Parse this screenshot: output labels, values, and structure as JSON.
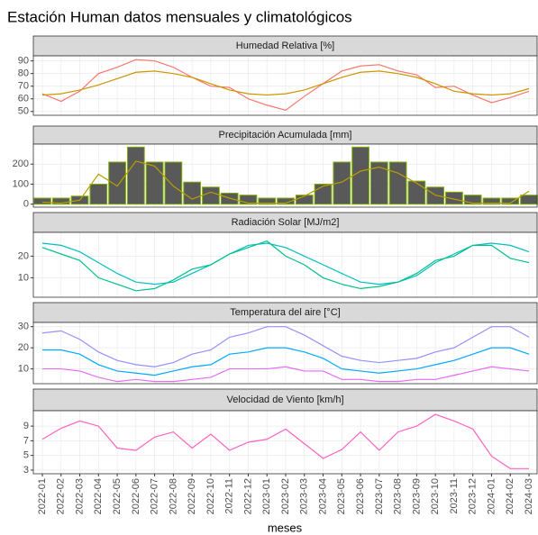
{
  "title": "Estación Human datos mensuales y climatológicos",
  "xlabel": "meses",
  "categories": [
    "2022-01",
    "2022-02",
    "2022-03",
    "2022-04",
    "2022-05",
    "2022-06",
    "2022-07",
    "2022-08",
    "2022-09",
    "2022-10",
    "2022-11",
    "2022-12",
    "2023-01",
    "2023-02",
    "2023-03",
    "2023-04",
    "2023-05",
    "2023-06",
    "2023-07",
    "2023-08",
    "2023-09",
    "2023-10",
    "2023-11",
    "2023-12",
    "2024-01",
    "2024-02",
    "2024-03"
  ],
  "chart_data": [
    {
      "type": "line",
      "title": "Humedad Relativa [%]",
      "ylim": [
        47,
        94
      ],
      "yticks": [
        50,
        60,
        70,
        80,
        90
      ],
      "grid": true,
      "series": [
        {
          "color": "#F8766D",
          "values": [
            64,
            58,
            66,
            80,
            85,
            91,
            90,
            85,
            77,
            70,
            69,
            60,
            55,
            51,
            62,
            72,
            82,
            86,
            87,
            82,
            79,
            69,
            70,
            63,
            57,
            61,
            66
          ]
        },
        {
          "color": "#CD9600",
          "values": [
            63,
            64,
            67,
            71,
            76,
            81,
            82,
            80,
            77,
            72,
            67,
            64,
            63,
            64,
            67,
            72,
            77,
            81,
            82,
            80,
            77,
            72,
            66,
            64,
            63,
            64,
            68
          ]
        }
      ]
    },
    {
      "type": "bar",
      "title": "Precipitación Acumulada [mm]",
      "ylim": [
        -15,
        300
      ],
      "yticks": [
        0,
        100,
        200
      ],
      "grid": true,
      "series": [
        {
          "type": "bar",
          "color": "#595959",
          "edgecolor": "#7CAE00",
          "values": [
            30,
            30,
            40,
            100,
            210,
            285,
            210,
            210,
            110,
            85,
            55,
            45,
            30,
            30,
            45,
            100,
            210,
            285,
            210,
            210,
            115,
            85,
            60,
            45,
            30,
            30,
            45
          ]
        },
        {
          "type": "line",
          "color": "#B79F00",
          "values": [
            10,
            5,
            20,
            150,
            90,
            215,
            190,
            90,
            25,
            60,
            30,
            5,
            5,
            5,
            40,
            90,
            110,
            165,
            185,
            155,
            105,
            45,
            25,
            5,
            5,
            5,
            65
          ]
        }
      ]
    },
    {
      "type": "line",
      "title": "Radiación Solar [MJ/m2]",
      "ylim": [
        1,
        31
      ],
      "yticks": [
        10,
        20
      ],
      "grid": true,
      "series": [
        {
          "color": "#00BFC4",
          "values": [
            26,
            25,
            22,
            17,
            12,
            8,
            7,
            8,
            12,
            16,
            21,
            25,
            26,
            24,
            20,
            16,
            12,
            8,
            7,
            8,
            11,
            17,
            21,
            25,
            26,
            25,
            22
          ]
        },
        {
          "color": "#00C08B",
          "values": [
            24,
            21,
            18,
            10,
            7,
            4,
            5,
            9,
            14,
            16,
            21,
            24,
            27,
            20,
            16,
            10,
            7,
            5,
            6,
            8,
            12,
            18,
            20,
            25,
            25,
            19,
            17
          ]
        }
      ]
    },
    {
      "type": "line",
      "title": "Temperatura del aire [°C]",
      "ylim": [
        3,
        32
      ],
      "yticks": [
        10,
        20,
        30
      ],
      "grid": true,
      "series": [
        {
          "color": "#9590FF",
          "values": [
            27,
            28,
            24,
            18,
            14,
            12,
            11,
            13,
            17,
            19,
            25,
            27,
            30,
            30,
            26,
            21,
            16,
            14,
            13,
            14,
            15,
            18,
            20,
            25,
            30,
            30,
            25
          ]
        },
        {
          "color": "#00A9FF",
          "values": [
            19,
            19,
            17,
            12,
            9,
            8,
            7,
            9,
            11,
            12,
            17,
            18,
            20,
            20,
            18,
            15,
            10,
            9,
            8,
            9,
            10,
            12,
            14,
            17,
            20,
            20,
            17
          ]
        },
        {
          "color": "#E76BF3",
          "values": [
            10,
            10,
            9,
            6,
            4,
            5,
            4,
            4,
            5,
            6,
            10,
            10,
            10,
            11,
            9,
            9,
            5,
            5,
            4,
            4,
            5,
            5,
            7,
            9,
            11,
            10,
            9
          ]
        }
      ]
    },
    {
      "type": "line",
      "title": "Velocidad de Viento [km/h]",
      "ylim": [
        2.5,
        11.1
      ],
      "yticks": [
        3,
        5,
        7,
        9
      ],
      "grid": true,
      "series": [
        {
          "color": "#FF61C3",
          "values": [
            7.2,
            8.7,
            9.7,
            9.0,
            6.0,
            5.7,
            7.5,
            8.2,
            6.0,
            7.9,
            5.7,
            6.8,
            7.2,
            8.6,
            6.6,
            4.6,
            5.8,
            8.2,
            5.7,
            8.2,
            9.0,
            10.6,
            9.7,
            8.6,
            4.9,
            3.2,
            3.2
          ]
        }
      ]
    }
  ]
}
